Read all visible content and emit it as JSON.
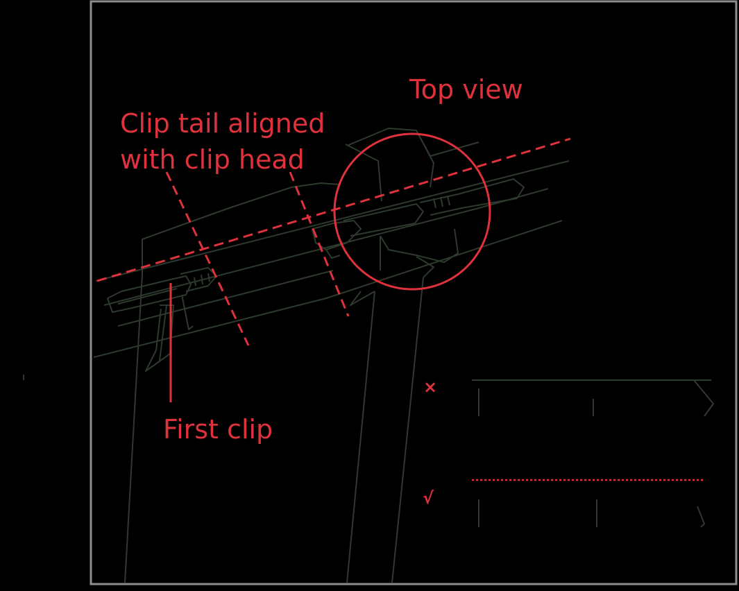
{
  "labels": {
    "top_view": "Top view",
    "clip_tail_line1": "Clip tail aligned",
    "clip_tail_line2": "with clip head",
    "first_clip": "First clip",
    "wrong_mark": "×",
    "right_mark": "√"
  },
  "colors": {
    "background": "#000000",
    "frame": "#8f8f8f",
    "annotation": "#e0323c",
    "linework": "#2d3a2d"
  }
}
